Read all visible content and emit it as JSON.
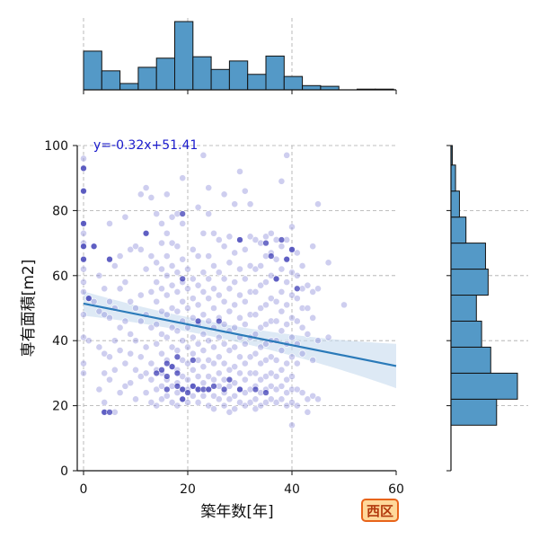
{
  "chart_data": {
    "type": "scatter",
    "title": "",
    "xlabel": "築年数[年]",
    "ylabel": "専有面積[m2]",
    "xlim": [
      -1,
      60
    ],
    "ylim": [
      0,
      100
    ],
    "x_ticks": [
      "0",
      "20",
      "40",
      "60"
    ],
    "y_ticks": [
      "0",
      "20",
      "40",
      "60",
      "80",
      "100"
    ],
    "grid": true,
    "regression": {
      "label": "y=-0.32x+51.41",
      "slope": -0.32,
      "intercept": 51.41,
      "color": "#2a7ab9",
      "ci_color": "#c6dbef"
    },
    "marker_color": "#8a8ad8",
    "dense_marker_color": "#3030b0",
    "x_hist": {
      "bin_edges": [
        0,
        3.5,
        7,
        10.5,
        14,
        17.5,
        21,
        24.5,
        28,
        31.5,
        35,
        38.5,
        42,
        45.5,
        49,
        52.5,
        56,
        59.5
      ],
      "counts": [
        55,
        27,
        9,
        32,
        45,
        97,
        47,
        29,
        41,
        22,
        48,
        19,
        6,
        5,
        0,
        1,
        1
      ]
    },
    "y_hist": {
      "bin_edges": [
        14,
        22,
        30,
        38,
        46,
        54,
        62,
        70,
        78,
        86,
        94,
        100
      ],
      "counts": [
        70,
        102,
        61,
        47,
        39,
        57,
        53,
        23,
        13,
        7,
        2
      ]
    },
    "hist_color": "#5499c7",
    "points_xy": [
      [
        0,
        96
      ],
      [
        0,
        93
      ],
      [
        0,
        86
      ],
      [
        0,
        76
      ],
      [
        0,
        73
      ],
      [
        0,
        70
      ],
      [
        0,
        69
      ],
      [
        0,
        65
      ],
      [
        0,
        62
      ],
      [
        0,
        58
      ],
      [
        0,
        55
      ],
      [
        0,
        48
      ],
      [
        0,
        41
      ],
      [
        0,
        33
      ],
      [
        0,
        30
      ],
      [
        1,
        53
      ],
      [
        1,
        40
      ],
      [
        2,
        69
      ],
      [
        2,
        52
      ],
      [
        3,
        60
      ],
      [
        3,
        49
      ],
      [
        3,
        38
      ],
      [
        3,
        25
      ],
      [
        4,
        56
      ],
      [
        4,
        48
      ],
      [
        4,
        36
      ],
      [
        4,
        30
      ],
      [
        4,
        21
      ],
      [
        4,
        18
      ],
      [
        5,
        76
      ],
      [
        5,
        65
      ],
      [
        5,
        52
      ],
      [
        5,
        47
      ],
      [
        5,
        35
      ],
      [
        5,
        28
      ],
      [
        6,
        63
      ],
      [
        6,
        50
      ],
      [
        6,
        40
      ],
      [
        6,
        31
      ],
      [
        6,
        18
      ],
      [
        7,
        66
      ],
      [
        7,
        56
      ],
      [
        7,
        44
      ],
      [
        7,
        37
      ],
      [
        7,
        24
      ],
      [
        8,
        78
      ],
      [
        8,
        58
      ],
      [
        8,
        46
      ],
      [
        8,
        33
      ],
      [
        8,
        26
      ],
      [
        9,
        68
      ],
      [
        9,
        52
      ],
      [
        9,
        42
      ],
      [
        9,
        36
      ],
      [
        9,
        27
      ],
      [
        10,
        69
      ],
      [
        10,
        50
      ],
      [
        10,
        40
      ],
      [
        10,
        31
      ],
      [
        10,
        22
      ],
      [
        11,
        85
      ],
      [
        11,
        68
      ],
      [
        11,
        54
      ],
      [
        11,
        46
      ],
      [
        11,
        35
      ],
      [
        11,
        29
      ],
      [
        12,
        87
      ],
      [
        12,
        73
      ],
      [
        12,
        62
      ],
      [
        12,
        48
      ],
      [
        12,
        38
      ],
      [
        12,
        30
      ],
      [
        12,
        24
      ],
      [
        13,
        84
      ],
      [
        13,
        66
      ],
      [
        13,
        55
      ],
      [
        13,
        44
      ],
      [
        13,
        33
      ],
      [
        13,
        28
      ],
      [
        13,
        21
      ],
      [
        14,
        79
      ],
      [
        14,
        64
      ],
      [
        14,
        58
      ],
      [
        14,
        52
      ],
      [
        14,
        45
      ],
      [
        14,
        39
      ],
      [
        14,
        31
      ],
      [
        14,
        25
      ],
      [
        14,
        20
      ],
      [
        15,
        76
      ],
      [
        15,
        70
      ],
      [
        15,
        62
      ],
      [
        15,
        56
      ],
      [
        15,
        49
      ],
      [
        15,
        42
      ],
      [
        15,
        36
      ],
      [
        15,
        30
      ],
      [
        15,
        26
      ],
      [
        15,
        22
      ],
      [
        16,
        85
      ],
      [
        16,
        73
      ],
      [
        16,
        66
      ],
      [
        16,
        60
      ],
      [
        16,
        54
      ],
      [
        16,
        48
      ],
      [
        16,
        41
      ],
      [
        16,
        34
      ],
      [
        16,
        28
      ],
      [
        16,
        23
      ],
      [
        17,
        78
      ],
      [
        17,
        70
      ],
      [
        17,
        63
      ],
      [
        17,
        57
      ],
      [
        17,
        50
      ],
      [
        17,
        44
      ],
      [
        17,
        38
      ],
      [
        17,
        32
      ],
      [
        17,
        26
      ],
      [
        17,
        21
      ],
      [
        18,
        79
      ],
      [
        18,
        69
      ],
      [
        18,
        61
      ],
      [
        18,
        55
      ],
      [
        18,
        49
      ],
      [
        18,
        43
      ],
      [
        18,
        37
      ],
      [
        18,
        31
      ],
      [
        18,
        27
      ],
      [
        18,
        24
      ],
      [
        18,
        20
      ],
      [
        19,
        90
      ],
      [
        19,
        76
      ],
      [
        19,
        65
      ],
      [
        19,
        58
      ],
      [
        19,
        52
      ],
      [
        19,
        46
      ],
      [
        19,
        40
      ],
      [
        19,
        34
      ],
      [
        19,
        29
      ],
      [
        19,
        25
      ],
      [
        19,
        22
      ],
      [
        20,
        62
      ],
      [
        20,
        56
      ],
      [
        20,
        50
      ],
      [
        20,
        44
      ],
      [
        20,
        38
      ],
      [
        20,
        33
      ],
      [
        20,
        28
      ],
      [
        20,
        25
      ],
      [
        20,
        21
      ],
      [
        21,
        68
      ],
      [
        21,
        59
      ],
      [
        21,
        53
      ],
      [
        21,
        47
      ],
      [
        21,
        41
      ],
      [
        21,
        36
      ],
      [
        21,
        31
      ],
      [
        21,
        26
      ],
      [
        21,
        23
      ],
      [
        22,
        81
      ],
      [
        22,
        66
      ],
      [
        22,
        57
      ],
      [
        22,
        51
      ],
      [
        22,
        45
      ],
      [
        22,
        39
      ],
      [
        22,
        34
      ],
      [
        22,
        29
      ],
      [
        22,
        25
      ],
      [
        22,
        21
      ],
      [
        23,
        97
      ],
      [
        23,
        73
      ],
      [
        23,
        61
      ],
      [
        23,
        55
      ],
      [
        23,
        48
      ],
      [
        23,
        42
      ],
      [
        23,
        37
      ],
      [
        23,
        32
      ],
      [
        23,
        27
      ],
      [
        23,
        23
      ],
      [
        24,
        87
      ],
      [
        24,
        79
      ],
      [
        24,
        66
      ],
      [
        24,
        59
      ],
      [
        24,
        53
      ],
      [
        24,
        46
      ],
      [
        24,
        40
      ],
      [
        24,
        34
      ],
      [
        24,
        29
      ],
      [
        24,
        25
      ],
      [
        24,
        20
      ],
      [
        25,
        73
      ],
      [
        25,
        63
      ],
      [
        25,
        56
      ],
      [
        25,
        50
      ],
      [
        25,
        44
      ],
      [
        25,
        38
      ],
      [
        25,
        33
      ],
      [
        25,
        28
      ],
      [
        25,
        23
      ],
      [
        25,
        19
      ],
      [
        26,
        71
      ],
      [
        26,
        61
      ],
      [
        26,
        54
      ],
      [
        26,
        47
      ],
      [
        26,
        41
      ],
      [
        26,
        35
      ],
      [
        26,
        30
      ],
      [
        26,
        26
      ],
      [
        26,
        22
      ],
      [
        27,
        85
      ],
      [
        27,
        69
      ],
      [
        27,
        59
      ],
      [
        27,
        52
      ],
      [
        27,
        45
      ],
      [
        27,
        39
      ],
      [
        27,
        33
      ],
      [
        27,
        28
      ],
      [
        27,
        24
      ],
      [
        27,
        20
      ],
      [
        28,
        72
      ],
      [
        28,
        64
      ],
      [
        28,
        56
      ],
      [
        28,
        49
      ],
      [
        28,
        43
      ],
      [
        28,
        37
      ],
      [
        28,
        31
      ],
      [
        28,
        26
      ],
      [
        28,
        22
      ],
      [
        28,
        18
      ],
      [
        29,
        82
      ],
      [
        29,
        67
      ],
      [
        29,
        58
      ],
      [
        29,
        51
      ],
      [
        29,
        44
      ],
      [
        29,
        38
      ],
      [
        29,
        32
      ],
      [
        29,
        27
      ],
      [
        29,
        23
      ],
      [
        29,
        19
      ],
      [
        30,
        92
      ],
      [
        30,
        71
      ],
      [
        30,
        62
      ],
      [
        30,
        54
      ],
      [
        30,
        47
      ],
      [
        30,
        41
      ],
      [
        30,
        35
      ],
      [
        30,
        30
      ],
      [
        30,
        25
      ],
      [
        30,
        21
      ],
      [
        31,
        86
      ],
      [
        31,
        68
      ],
      [
        31,
        59
      ],
      [
        31,
        52
      ],
      [
        31,
        45
      ],
      [
        31,
        39
      ],
      [
        31,
        33
      ],
      [
        31,
        28
      ],
      [
        31,
        24
      ],
      [
        31,
        20
      ],
      [
        32,
        82
      ],
      [
        32,
        72
      ],
      [
        32,
        63
      ],
      [
        32,
        55
      ],
      [
        32,
        48
      ],
      [
        32,
        41
      ],
      [
        32,
        35
      ],
      [
        32,
        30
      ],
      [
        32,
        25
      ],
      [
        32,
        21
      ],
      [
        33,
        71
      ],
      [
        33,
        62
      ],
      [
        33,
        55
      ],
      [
        33,
        48
      ],
      [
        33,
        42
      ],
      [
        33,
        36
      ],
      [
        33,
        30
      ],
      [
        33,
        26
      ],
      [
        33,
        22
      ],
      [
        33,
        19
      ],
      [
        34,
        70
      ],
      [
        34,
        63
      ],
      [
        34,
        57
      ],
      [
        34,
        50
      ],
      [
        34,
        44
      ],
      [
        34,
        38
      ],
      [
        34,
        33
      ],
      [
        34,
        28
      ],
      [
        34,
        24
      ],
      [
        34,
        20
      ],
      [
        35,
        72
      ],
      [
        35,
        66
      ],
      [
        35,
        58
      ],
      [
        35,
        51
      ],
      [
        35,
        45
      ],
      [
        35,
        39
      ],
      [
        35,
        34
      ],
      [
        35,
        29
      ],
      [
        35,
        25
      ],
      [
        35,
        21
      ],
      [
        36,
        73
      ],
      [
        36,
        67
      ],
      [
        36,
        60
      ],
      [
        36,
        53
      ],
      [
        36,
        46
      ],
      [
        36,
        40
      ],
      [
        36,
        35
      ],
      [
        36,
        30
      ],
      [
        36,
        26
      ],
      [
        36,
        22
      ],
      [
        37,
        71
      ],
      [
        37,
        65
      ],
      [
        37,
        59
      ],
      [
        37,
        52
      ],
      [
        37,
        46
      ],
      [
        37,
        40
      ],
      [
        37,
        34
      ],
      [
        37,
        29
      ],
      [
        37,
        25
      ],
      [
        37,
        21
      ],
      [
        38,
        89
      ],
      [
        38,
        69
      ],
      [
        38,
        62
      ],
      [
        38,
        55
      ],
      [
        38,
        49
      ],
      [
        38,
        43
      ],
      [
        38,
        37
      ],
      [
        38,
        31
      ],
      [
        38,
        26
      ],
      [
        38,
        22
      ],
      [
        39,
        97
      ],
      [
        39,
        71
      ],
      [
        39,
        65
      ],
      [
        39,
        58
      ],
      [
        39,
        51
      ],
      [
        39,
        45
      ],
      [
        39,
        39
      ],
      [
        39,
        33
      ],
      [
        39,
        28
      ],
      [
        39,
        24
      ],
      [
        39,
        20
      ],
      [
        40,
        75
      ],
      [
        40,
        68
      ],
      [
        40,
        61
      ],
      [
        40,
        54
      ],
      [
        40,
        47
      ],
      [
        40,
        41
      ],
      [
        40,
        35
      ],
      [
        40,
        29
      ],
      [
        40,
        25
      ],
      [
        40,
        21
      ],
      [
        40,
        14
      ],
      [
        41,
        67
      ],
      [
        41,
        60
      ],
      [
        41,
        53
      ],
      [
        41,
        46
      ],
      [
        41,
        39
      ],
      [
        41,
        33
      ],
      [
        41,
        25
      ],
      [
        41,
        20
      ],
      [
        42,
        63
      ],
      [
        42,
        56
      ],
      [
        42,
        50
      ],
      [
        42,
        44
      ],
      [
        42,
        36
      ],
      [
        42,
        24
      ],
      [
        43,
        57
      ],
      [
        43,
        50
      ],
      [
        43,
        42
      ],
      [
        43,
        22
      ],
      [
        43,
        18
      ],
      [
        44,
        69
      ],
      [
        44,
        55
      ],
      [
        44,
        47
      ],
      [
        44,
        34
      ],
      [
        44,
        23
      ],
      [
        45,
        82
      ],
      [
        45,
        56
      ],
      [
        45,
        40
      ],
      [
        45,
        22
      ],
      [
        47,
        64
      ],
      [
        47,
        41
      ],
      [
        50,
        51
      ]
    ],
    "dense_points_xy": [
      [
        0,
        93
      ],
      [
        0,
        86
      ],
      [
        0,
        76
      ],
      [
        0,
        69
      ],
      [
        0,
        65
      ],
      [
        1,
        53
      ],
      [
        2,
        69
      ],
      [
        4,
        18
      ],
      [
        5,
        18
      ],
      [
        5,
        65
      ],
      [
        12,
        73
      ],
      [
        14,
        30
      ],
      [
        15,
        31
      ],
      [
        16,
        33
      ],
      [
        16,
        29
      ],
      [
        16,
        25
      ],
      [
        17,
        32
      ],
      [
        18,
        30
      ],
      [
        18,
        26
      ],
      [
        18,
        35
      ],
      [
        19,
        59
      ],
      [
        19,
        25
      ],
      [
        19,
        22
      ],
      [
        19,
        79
      ],
      [
        20,
        24
      ],
      [
        21,
        26
      ],
      [
        21,
        34
      ],
      [
        22,
        25
      ],
      [
        22,
        46
      ],
      [
        23,
        25
      ],
      [
        24,
        25
      ],
      [
        25,
        26
      ],
      [
        26,
        46
      ],
      [
        27,
        25
      ],
      [
        28,
        28
      ],
      [
        30,
        25
      ],
      [
        30,
        71
      ],
      [
        33,
        25
      ],
      [
        35,
        70
      ],
      [
        35,
        24
      ],
      [
        36,
        66
      ],
      [
        37,
        59
      ],
      [
        38,
        71
      ],
      [
        39,
        65
      ],
      [
        40,
        68
      ],
      [
        41,
        56
      ]
    ]
  }
}
